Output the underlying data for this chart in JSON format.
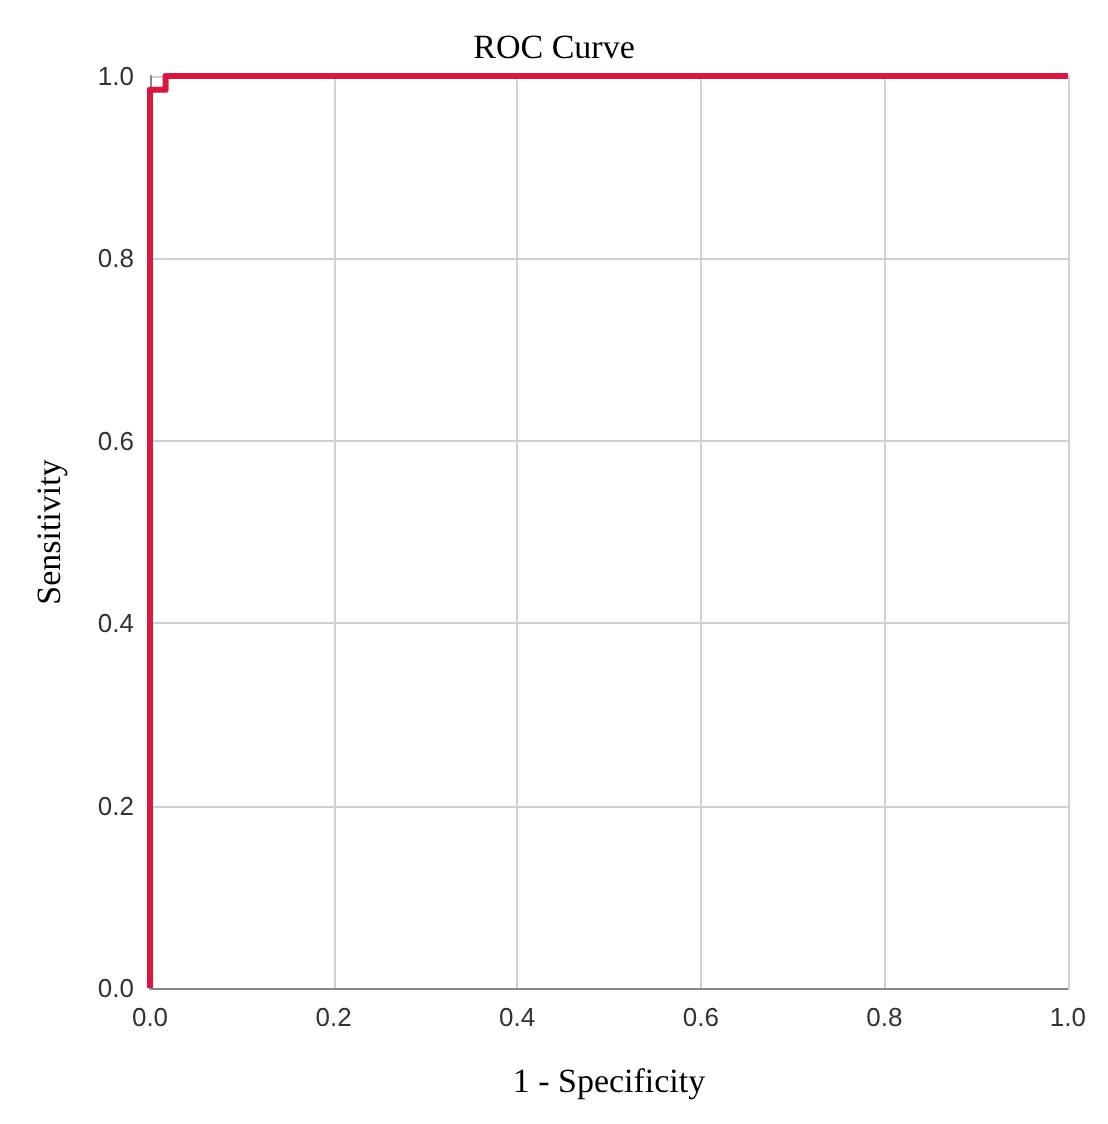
{
  "chart_data": {
    "type": "line",
    "title": "ROC Curve",
    "xlabel": "1 - Specificity",
    "ylabel": "Sensitivity",
    "series": [
      {
        "color": "#d9173f",
        "x": [
          0,
          0,
          0.017,
          0.017,
          1
        ],
        "values": [
          0,
          0.985,
          0.985,
          1,
          1
        ]
      }
    ],
    "xlim": [
      0,
      1
    ],
    "ylim": [
      0,
      1
    ],
    "xticks": [
      {
        "value": 0,
        "label": "0.0"
      },
      0.2,
      0.4,
      0.6,
      0.8,
      {
        "value": 1,
        "label": "1.0"
      }
    ],
    "yticks": [
      {
        "value": 0,
        "label": "0.0"
      },
      0.2,
      0.4,
      0.6,
      0.8,
      {
        "value": 1,
        "label": "1.0"
      }
    ],
    "grid": true,
    "marker": "none",
    "line_style": "solid"
  }
}
